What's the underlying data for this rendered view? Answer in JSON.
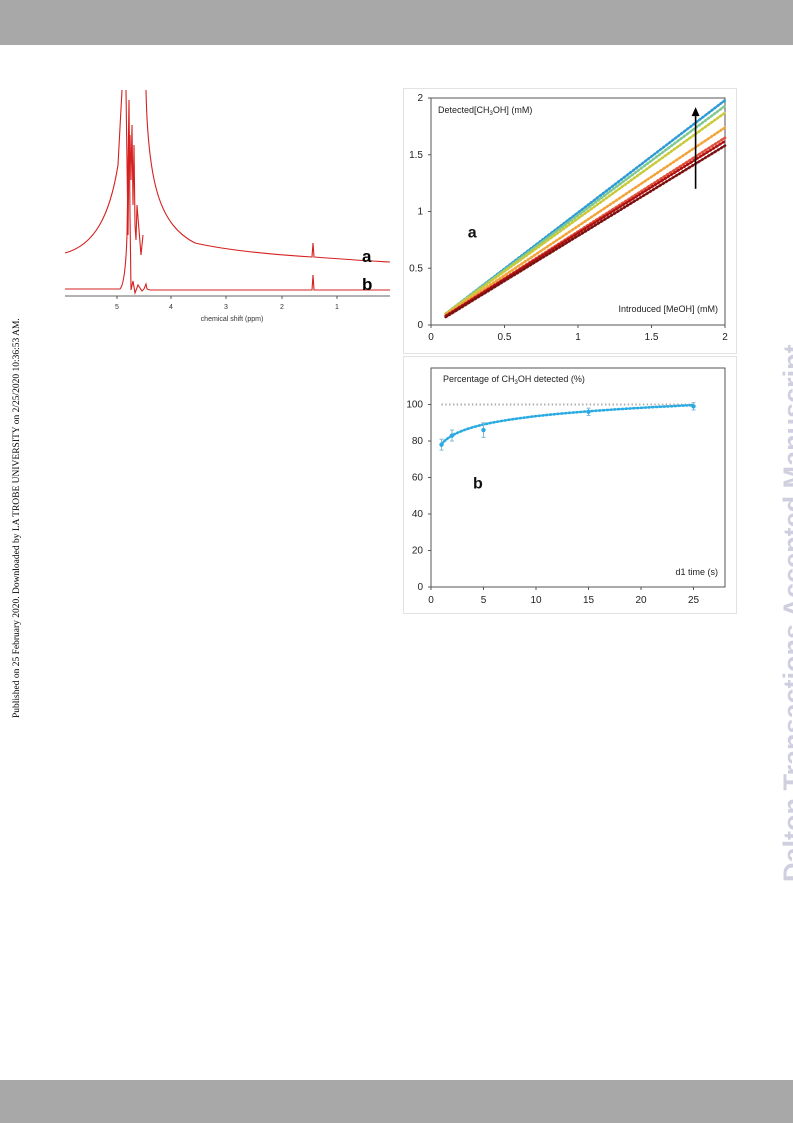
{
  "page": {
    "side_note": "Published on 25 February 2020. Downloaded by LA TROBE UNIVERSITY on 2/25/2020 10:36:53 AM.",
    "watermark": "Dalton Transactions Accepted Manuscript",
    "colors": {
      "band": "#a8a8a8",
      "watermark": "#cfcfe0",
      "spectrum": "#d62020"
    }
  },
  "nmr": {
    "x_axis_label": "chemical shift (ppm)",
    "ticks": [
      "5",
      "4",
      "3",
      "2",
      "1"
    ],
    "trace_labels": [
      "a",
      "b"
    ]
  },
  "chart_data": [
    {
      "type": "line",
      "panel_label": "a",
      "ylabel": "Detected[CH3OH] (mM)",
      "xlabel": "Introduced [MeOH] (mM)",
      "xlim": [
        0,
        2
      ],
      "ylim": [
        0,
        2
      ],
      "x_ticks": [
        "0",
        "0.5",
        "1",
        "1.5",
        "2"
      ],
      "y_ticks": [
        "0",
        "0.5",
        "1",
        "1.5",
        "2"
      ],
      "grid": false,
      "line_style": "dotted",
      "series": [
        {
          "color": "#2e9ad6",
          "x": [
            0.1,
            2.0
          ],
          "y": [
            0.1,
            1.98
          ]
        },
        {
          "color": "#7fc98f",
          "x": [
            0.1,
            2.0
          ],
          "y": [
            0.1,
            1.93
          ]
        },
        {
          "color": "#c9c93a",
          "x": [
            0.1,
            2.0
          ],
          "y": [
            0.1,
            1.87
          ]
        },
        {
          "color": "#f2a43a",
          "x": [
            0.1,
            2.0
          ],
          "y": [
            0.09,
            1.74
          ]
        },
        {
          "color": "#e0503a",
          "x": [
            0.1,
            2.0
          ],
          "y": [
            0.08,
            1.65
          ]
        },
        {
          "color": "#b01010",
          "x": [
            0.1,
            2.0
          ],
          "y": [
            0.08,
            1.62
          ]
        },
        {
          "color": "#7a1010",
          "x": [
            0.1,
            2.0
          ],
          "y": [
            0.07,
            1.58
          ]
        }
      ],
      "annotation": "upward arrow near x = 1.8, y from 1.2 to 1.9"
    },
    {
      "type": "scatter",
      "panel_label": "b",
      "ylabel": "Percentage of CH3OH detected (%)",
      "xlabel": "d1 time (s)",
      "xlim": [
        0,
        28
      ],
      "ylim": [
        0,
        120
      ],
      "x_ticks": [
        "0",
        "5",
        "10",
        "15",
        "20",
        "25"
      ],
      "y_ticks": [
        "0",
        "20",
        "40",
        "60",
        "80",
        "100"
      ],
      "grid": false,
      "reference_line": 100,
      "series": [
        {
          "color": "#29abe2",
          "x": [
            1,
            2,
            5,
            15,
            25
          ],
          "y": [
            78,
            83,
            86,
            96,
            99
          ],
          "error": [
            3,
            3,
            4,
            2,
            2
          ],
          "fit": "dotted logarithmic trend"
        }
      ]
    }
  ]
}
